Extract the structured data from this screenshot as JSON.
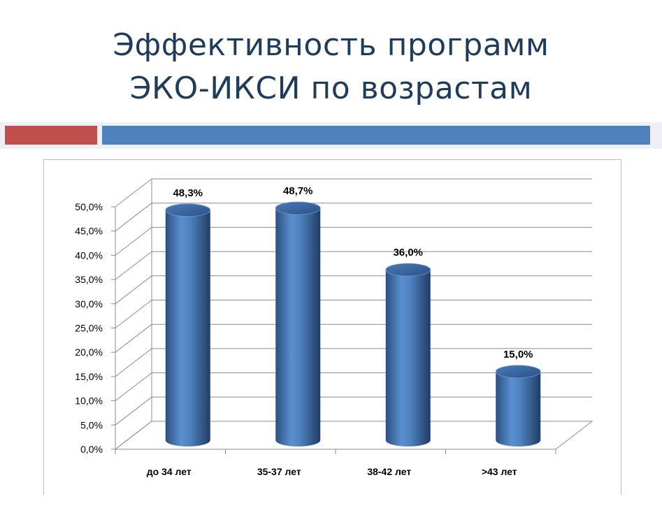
{
  "slide": {
    "title_line1": "Эффективность программ",
    "title_line2": "ЭКО-ИКСИ по возрастам",
    "accent_colors": {
      "red": "#c0504d",
      "blue": "#4f81bd"
    }
  },
  "chart_data": {
    "type": "bar",
    "style": "3d-cylinder",
    "categories": [
      "до 34 лет",
      "35-37 лет",
      "38-42 лет",
      ">43 лет"
    ],
    "values": [
      48.3,
      48.7,
      36.0,
      15.0
    ],
    "data_labels": [
      "48,3%",
      "48,7%",
      "36,0%",
      "15,0%"
    ],
    "ylim": [
      0,
      50
    ],
    "yticks": [
      "0,0%",
      "5,0%",
      "10,0%",
      "15,0%",
      "20,0%",
      "25,0%",
      "30,0%",
      "35,0%",
      "40,0%",
      "45,0%",
      "50,0%"
    ],
    "grid": true,
    "legend": "none",
    "bar_color": "#4f81bd"
  }
}
